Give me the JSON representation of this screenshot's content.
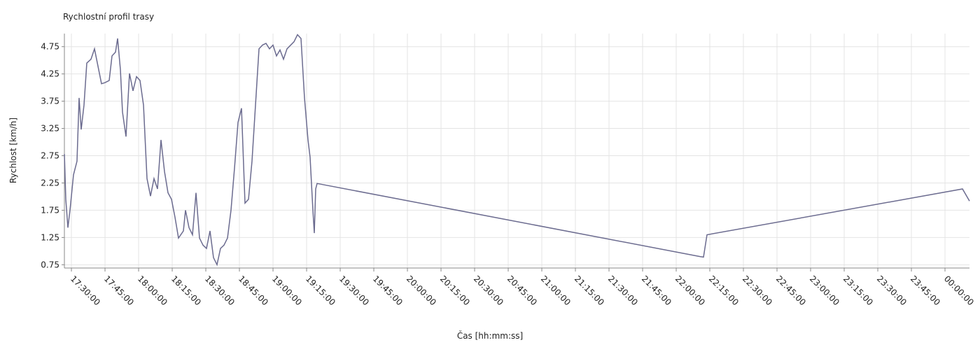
{
  "chart_data": {
    "type": "line",
    "title": "Rychlostní profil trasy",
    "x_label": "Čas  [hh:mm:ss]",
    "y_label": "Rychlost [km/h]",
    "x": [
      "17:26:52",
      "17:27:30",
      "17:28:26",
      "17:29:22",
      "17:30:56",
      "17:32:30",
      "17:33:26",
      "17:34:22",
      "17:35:37",
      "17:36:52",
      "17:38:45",
      "17:40:19",
      "17:41:52",
      "17:43:26",
      "17:45:00",
      "17:46:52",
      "17:48:07",
      "17:49:41",
      "17:50:37",
      "17:51:52",
      "17:52:49",
      "17:54:22",
      "17:55:56",
      "17:57:30",
      "17:59:04",
      "18:00:37",
      "18:02:11",
      "18:03:45",
      "18:05:19",
      "18:06:52",
      "18:08:26",
      "18:10:00",
      "18:11:34",
      "18:13:07",
      "18:14:41",
      "18:16:15",
      "18:17:49",
      "18:20:00",
      "18:20:56",
      "18:22:30",
      "18:24:04",
      "18:25:37",
      "18:27:11",
      "18:28:45",
      "18:30:19",
      "18:31:52",
      "18:33:26",
      "18:35:00",
      "18:36:34",
      "18:38:07",
      "18:39:41",
      "18:41:15",
      "18:42:49",
      "18:44:22",
      "18:45:56",
      "18:47:30",
      "18:49:04",
      "18:50:37",
      "18:52:11",
      "18:53:45",
      "18:55:19",
      "18:56:52",
      "18:58:26",
      "19:00:00",
      "19:01:34",
      "19:03:07",
      "19:04:41",
      "19:06:15",
      "19:09:22",
      "19:10:56",
      "19:12:30",
      "19:14:04",
      "19:15:37",
      "19:16:34",
      "19:17:49",
      "19:18:26",
      "19:19:04",
      "19:19:41",
      "22:10:37",
      "22:12:11",
      "22:13:45",
      "00:07:49",
      "00:10:56"
    ],
    "series": [
      {
        "name": "Rychlost",
        "color": "#6b6b8f",
        "values": [
          2.78,
          1.95,
          1.43,
          1.75,
          2.4,
          2.65,
          3.81,
          3.23,
          3.68,
          4.45,
          4.52,
          4.71,
          4.39,
          4.07,
          4.09,
          4.13,
          4.58,
          4.65,
          4.9,
          4.33,
          3.55,
          3.1,
          4.26,
          3.94,
          4.2,
          4.13,
          3.68,
          2.33,
          2.01,
          2.33,
          2.14,
          3.04,
          2.46,
          2.07,
          1.95,
          1.62,
          1.24,
          1.37,
          1.75,
          1.43,
          1.3,
          2.07,
          1.24,
          1.11,
          1.05,
          1.37,
          0.88,
          0.75,
          1.05,
          1.11,
          1.24,
          1.75,
          2.52,
          3.36,
          3.62,
          1.88,
          1.95,
          2.65,
          3.68,
          4.71,
          4.78,
          4.81,
          4.71,
          4.78,
          4.58,
          4.69,
          4.52,
          4.71,
          4.84,
          4.97,
          4.9,
          3.81,
          3.04,
          2.72,
          1.75,
          1.33,
          2.14,
          2.24,
          0.9,
          0.89,
          1.3,
          2.14,
          1.92
        ]
      }
    ],
    "xlim": [
      "17:26:52",
      "00:10:56"
    ],
    "xticks": [
      "17:30:00",
      "17:45:00",
      "18:00:00",
      "18:15:00",
      "18:30:00",
      "18:45:00",
      "19:00:00",
      "19:15:00",
      "19:30:00",
      "19:45:00",
      "20:00:00",
      "20:15:00",
      "20:30:00",
      "20:45:00",
      "21:00:00",
      "21:15:00",
      "21:30:00",
      "21:45:00",
      "22:00:00",
      "22:15:00",
      "22:30:00",
      "22:45:00",
      "23:00:00",
      "23:15:00",
      "23:30:00",
      "23:45:00",
      "00:00:00"
    ],
    "ylim": [
      0.69,
      4.99
    ],
    "yticks": [
      0.75,
      1.25,
      1.75,
      2.25,
      2.75,
      3.25,
      3.75,
      4.25,
      4.75
    ],
    "grid": true
  }
}
